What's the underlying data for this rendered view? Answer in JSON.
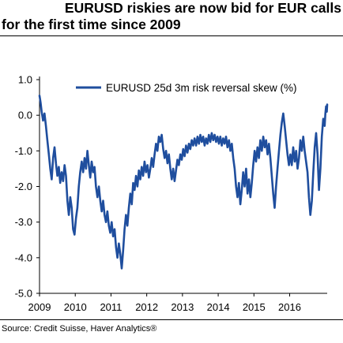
{
  "title_line1": "EURUSD riskies are now bid for EUR calls",
  "title_line2": "for the first time since 2009",
  "source": "Source: Credit Suisse, Haver Analytics®",
  "chart_data": {
    "type": "line",
    "title": "EURUSD riskies are now bid for EUR calls for the first time since 2009",
    "xlabel": "",
    "ylabel": "",
    "xlim": [
      2009.0,
      2017.05
    ],
    "ylim": [
      -5.0,
      1.0
    ],
    "y_ticks": [
      "1.0",
      "0.0",
      "-1.0",
      "-2.0",
      "-3.0",
      "-4.0",
      "-5.0"
    ],
    "y_tick_values": [
      1,
      0,
      -1,
      -2,
      -3,
      -4,
      -5
    ],
    "x_ticks": [
      "2009",
      "2010",
      "2011",
      "2012",
      "2013",
      "2014",
      "2015",
      "2016"
    ],
    "x_tick_values": [
      2009,
      2010,
      2011,
      2012,
      2013,
      2014,
      2015,
      2016
    ],
    "grid": false,
    "legend_position": "top-right",
    "series": [
      {
        "name": "EURUSD 25d 3m risk reversal skew (%)",
        "color": "#1f4e9e",
        "points": [
          [
            2009.0,
            0.55
          ],
          [
            2009.03,
            0.35
          ],
          [
            2009.06,
            0.1
          ],
          [
            2009.1,
            -0.15
          ],
          [
            2009.14,
            0.05
          ],
          [
            2009.18,
            -0.3
          ],
          [
            2009.22,
            -0.7
          ],
          [
            2009.26,
            -1.1
          ],
          [
            2009.3,
            -1.5
          ],
          [
            2009.34,
            -1.8
          ],
          [
            2009.38,
            -1.2
          ],
          [
            2009.42,
            -0.9
          ],
          [
            2009.46,
            -1.35
          ],
          [
            2009.5,
            -1.7
          ],
          [
            2009.54,
            -1.45
          ],
          [
            2009.58,
            -1.9
          ],
          [
            2009.62,
            -1.6
          ],
          [
            2009.66,
            -1.85
          ],
          [
            2009.7,
            -1.4
          ],
          [
            2009.74,
            -1.7
          ],
          [
            2009.78,
            -2.4
          ],
          [
            2009.82,
            -2.8
          ],
          [
            2009.86,
            -2.3
          ],
          [
            2009.9,
            -2.6
          ],
          [
            2009.94,
            -3.2
          ],
          [
            2009.98,
            -3.35
          ],
          [
            2010.02,
            -2.9
          ],
          [
            2010.06,
            -2.6
          ],
          [
            2010.1,
            -2.0
          ],
          [
            2010.14,
            -1.6
          ],
          [
            2010.18,
            -1.3
          ],
          [
            2010.22,
            -1.6
          ],
          [
            2010.26,
            -1.2
          ],
          [
            2010.3,
            -1.5
          ],
          [
            2010.34,
            -1.0
          ],
          [
            2010.38,
            -1.4
          ],
          [
            2010.42,
            -1.75
          ],
          [
            2010.46,
            -1.3
          ],
          [
            2010.5,
            -1.6
          ],
          [
            2010.54,
            -1.45
          ],
          [
            2010.58,
            -2.0
          ],
          [
            2010.62,
            -2.3
          ],
          [
            2010.66,
            -2.0
          ],
          [
            2010.7,
            -2.4
          ],
          [
            2010.74,
            -2.7
          ],
          [
            2010.78,
            -2.4
          ],
          [
            2010.82,
            -2.8
          ],
          [
            2010.86,
            -3.0
          ],
          [
            2010.9,
            -2.7
          ],
          [
            2010.94,
            -3.1
          ],
          [
            2010.98,
            -3.3
          ],
          [
            2011.02,
            -3.0
          ],
          [
            2011.06,
            -3.4
          ],
          [
            2011.1,
            -3.2
          ],
          [
            2011.14,
            -3.7
          ],
          [
            2011.18,
            -4.0
          ],
          [
            2011.22,
            -3.6
          ],
          [
            2011.26,
            -3.9
          ],
          [
            2011.3,
            -4.3
          ],
          [
            2011.34,
            -3.8
          ],
          [
            2011.38,
            -3.2
          ],
          [
            2011.42,
            -2.8
          ],
          [
            2011.46,
            -3.1
          ],
          [
            2011.5,
            -2.6
          ],
          [
            2011.54,
            -2.2
          ],
          [
            2011.58,
            -2.5
          ],
          [
            2011.62,
            -1.9
          ],
          [
            2011.66,
            -2.1
          ],
          [
            2011.7,
            -1.7
          ],
          [
            2011.74,
            -2.0
          ],
          [
            2011.78,
            -1.55
          ],
          [
            2011.82,
            -1.8
          ],
          [
            2011.86,
            -1.45
          ],
          [
            2011.9,
            -1.7
          ],
          [
            2011.94,
            -1.3
          ],
          [
            2011.98,
            -1.6
          ],
          [
            2012.02,
            -1.4
          ],
          [
            2012.06,
            -1.75
          ],
          [
            2012.1,
            -1.5
          ],
          [
            2012.14,
            -1.2
          ],
          [
            2012.18,
            -1.45
          ],
          [
            2012.22,
            -1.1
          ],
          [
            2012.26,
            -0.8
          ],
          [
            2012.3,
            -1.0
          ],
          [
            2012.34,
            -0.6
          ],
          [
            2012.38,
            -0.75
          ],
          [
            2012.42,
            -0.55
          ],
          [
            2012.46,
            -0.95
          ],
          [
            2012.5,
            -1.2
          ],
          [
            2012.54,
            -1.0
          ],
          [
            2012.58,
            -1.35
          ],
          [
            2012.62,
            -1.1
          ],
          [
            2012.66,
            -1.5
          ],
          [
            2012.7,
            -1.8
          ],
          [
            2012.74,
            -1.5
          ],
          [
            2012.78,
            -1.85
          ],
          [
            2012.82,
            -1.55
          ],
          [
            2012.86,
            -1.25
          ],
          [
            2012.9,
            -1.4
          ],
          [
            2012.94,
            -1.1
          ],
          [
            2012.98,
            -1.25
          ],
          [
            2013.02,
            -0.95
          ],
          [
            2013.06,
            -1.15
          ],
          [
            2013.1,
            -0.85
          ],
          [
            2013.14,
            -1.05
          ],
          [
            2013.18,
            -0.8
          ],
          [
            2013.22,
            -0.95
          ],
          [
            2013.26,
            -0.7
          ],
          [
            2013.3,
            -0.85
          ],
          [
            2013.34,
            -0.65
          ],
          [
            2013.38,
            -0.85
          ],
          [
            2013.42,
            -0.6
          ],
          [
            2013.46,
            -0.8
          ],
          [
            2013.5,
            -0.55
          ],
          [
            2013.54,
            -0.75
          ],
          [
            2013.58,
            -0.6
          ],
          [
            2013.62,
            -0.85
          ],
          [
            2013.66,
            -0.65
          ],
          [
            2013.7,
            -0.8
          ],
          [
            2013.74,
            -0.55
          ],
          [
            2013.78,
            -0.75
          ],
          [
            2013.82,
            -0.5
          ],
          [
            2013.86,
            -0.7
          ],
          [
            2013.9,
            -0.55
          ],
          [
            2013.94,
            -0.75
          ],
          [
            2013.98,
            -0.6
          ],
          [
            2014.02,
            -0.8
          ],
          [
            2014.06,
            -0.6
          ],
          [
            2014.1,
            -0.85
          ],
          [
            2014.14,
            -0.65
          ],
          [
            2014.18,
            -0.8
          ],
          [
            2014.22,
            -0.6
          ],
          [
            2014.26,
            -0.9
          ],
          [
            2014.3,
            -0.7
          ],
          [
            2014.34,
            -1.0
          ],
          [
            2014.38,
            -0.8
          ],
          [
            2014.42,
            -1.2
          ],
          [
            2014.46,
            -1.5
          ],
          [
            2014.5,
            -2.0
          ],
          [
            2014.54,
            -2.3
          ],
          [
            2014.58,
            -1.9
          ],
          [
            2014.62,
            -2.5
          ],
          [
            2014.66,
            -2.1
          ],
          [
            2014.7,
            -1.6
          ],
          [
            2014.74,
            -2.0
          ],
          [
            2014.78,
            -1.5
          ],
          [
            2014.82,
            -2.2
          ],
          [
            2014.86,
            -1.8
          ],
          [
            2014.9,
            -2.3
          ],
          [
            2014.94,
            -1.9
          ],
          [
            2014.98,
            -1.4
          ],
          [
            2015.02,
            -1.0
          ],
          [
            2015.06,
            -1.3
          ],
          [
            2015.1,
            -0.9
          ],
          [
            2015.14,
            -1.2
          ],
          [
            2015.18,
            -0.7
          ],
          [
            2015.22,
            -1.0
          ],
          [
            2015.26,
            -0.6
          ],
          [
            2015.3,
            -0.9
          ],
          [
            2015.34,
            -0.7
          ],
          [
            2015.38,
            -1.1
          ],
          [
            2015.42,
            -0.8
          ],
          [
            2015.46,
            -1.2
          ],
          [
            2015.5,
            -1.7
          ],
          [
            2015.54,
            -2.2
          ],
          [
            2015.58,
            -2.6
          ],
          [
            2015.62,
            -2.0
          ],
          [
            2015.66,
            -1.5
          ],
          [
            2015.7,
            -1.0
          ],
          [
            2015.74,
            -0.55
          ],
          [
            2015.78,
            -0.2
          ],
          [
            2015.82,
            0.05
          ],
          [
            2015.86,
            -0.3
          ],
          [
            2015.9,
            -0.7
          ],
          [
            2015.94,
            -1.1
          ],
          [
            2015.98,
            -1.4
          ],
          [
            2016.02,
            -1.1
          ],
          [
            2016.06,
            -1.4
          ],
          [
            2016.1,
            -0.9
          ],
          [
            2016.14,
            -1.3
          ],
          [
            2016.18,
            -1.0
          ],
          [
            2016.22,
            -1.5
          ],
          [
            2016.26,
            -1.2
          ],
          [
            2016.3,
            -0.7
          ],
          [
            2016.34,
            -1.0
          ],
          [
            2016.38,
            -0.6
          ],
          [
            2016.42,
            -1.0
          ],
          [
            2016.46,
            -1.3
          ],
          [
            2016.5,
            -1.6
          ],
          [
            2016.54,
            -2.3
          ],
          [
            2016.58,
            -2.8
          ],
          [
            2016.62,
            -2.4
          ],
          [
            2016.66,
            -1.6
          ],
          [
            2016.7,
            -0.9
          ],
          [
            2016.74,
            -0.5
          ],
          [
            2016.78,
            -1.1
          ],
          [
            2016.82,
            -2.1
          ],
          [
            2016.86,
            -1.5
          ],
          [
            2016.9,
            -0.6
          ],
          [
            2016.94,
            -0.1
          ],
          [
            2016.98,
            -0.3
          ],
          [
            2017.0,
            0.05
          ],
          [
            2017.02,
            0.25
          ],
          [
            2017.04,
            0.1
          ],
          [
            2017.05,
            0.3
          ]
        ]
      }
    ]
  }
}
